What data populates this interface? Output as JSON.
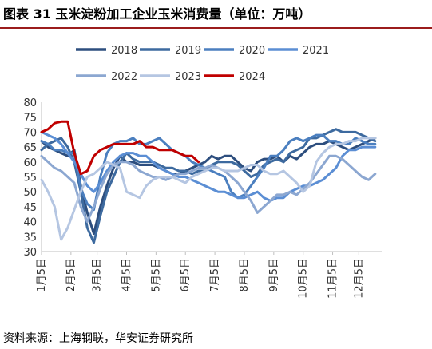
{
  "header": {
    "title": "图表 31 玉米淀粉加工企业玉米消费量（单位：万吨）"
  },
  "footer": {
    "source": "资料来源：上海钢联，华安证券研究所"
  },
  "chart_data": {
    "type": "line",
    "title": "图表 31 玉米淀粉加工企业玉米消费量（单位：万吨）",
    "ylim": [
      30,
      80
    ],
    "yticks": [
      30,
      35,
      40,
      45,
      50,
      55,
      60,
      65,
      70,
      75,
      80
    ],
    "xlim": [
      1,
      53
    ],
    "x_tick_labels": [
      {
        "label": "1月5日",
        "week": 1
      },
      {
        "label": "2月5日",
        "week": 5.5
      },
      {
        "label": "3月5日",
        "week": 9.5
      },
      {
        "label": "4月5日",
        "week": 14
      },
      {
        "label": "5月5日",
        "week": 18.5
      },
      {
        "label": "6月5日",
        "week": 23
      },
      {
        "label": "7月5日",
        "week": 27.5
      },
      {
        "label": "8月5日",
        "week": 32
      },
      {
        "label": "9月5日",
        "week": 36.5
      },
      {
        "label": "10月5日",
        "week": 41
      },
      {
        "label": "11月5日",
        "week": 45.5
      },
      {
        "label": "12月5日",
        "week": 49.5
      }
    ],
    "grid": false,
    "legend_position": "top",
    "series": [
      {
        "name": "2018",
        "color": "#2d4e7e",
        "values": [
          67,
          65,
          64,
          63,
          62,
          64,
          52,
          43,
          36,
          45,
          52,
          58,
          62,
          60,
          60,
          59,
          59,
          59,
          58,
          57,
          56,
          56,
          57,
          58,
          59,
          60,
          62,
          61,
          62,
          62,
          60,
          58,
          57,
          60,
          61,
          61,
          62,
          60,
          62,
          61,
          63,
          65,
          66,
          66,
          67,
          66,
          65,
          64,
          65,
          66,
          67,
          68
        ]
      },
      {
        "name": "2019",
        "color": "#3d6a9f",
        "values": [
          64,
          66,
          67,
          68,
          65,
          60,
          50,
          38,
          33,
          42,
          50,
          55,
          60,
          63,
          61,
          60,
          60,
          60,
          59,
          58,
          58,
          57,
          57,
          56,
          57,
          57,
          59,
          60,
          60,
          60,
          59,
          57,
          55,
          56,
          59,
          60,
          61,
          60,
          63,
          64,
          65,
          68,
          68,
          69,
          70,
          71,
          70,
          70,
          70,
          69,
          68,
          67
        ]
      },
      {
        "name": "2020",
        "color": "#4b7fbf",
        "values": [
          67,
          66,
          64,
          64,
          63,
          63,
          51,
          46,
          44,
          55,
          63,
          66,
          67,
          67,
          68,
          66,
          66,
          67,
          68,
          66,
          64,
          63,
          62,
          60,
          59,
          58,
          57,
          56,
          55,
          50,
          48,
          49,
          52,
          55,
          58,
          62,
          62,
          64,
          67,
          68,
          67,
          68,
          69,
          69,
          67,
          67,
          66,
          66,
          68,
          67,
          66,
          66
        ]
      },
      {
        "name": "2021",
        "color": "#5b8ed4",
        "values": [
          70,
          69,
          68,
          66,
          63,
          60,
          56,
          52,
          50,
          53,
          57,
          60,
          62,
          63,
          63,
          62,
          62,
          60,
          58,
          57,
          56,
          55,
          55,
          54,
          53,
          52,
          51,
          50,
          50,
          49,
          48,
          48,
          49,
          50,
          48,
          47,
          48,
          48,
          50,
          51,
          52,
          52,
          53,
          54,
          56,
          58,
          62,
          64,
          64,
          65,
          65,
          65
        ]
      },
      {
        "name": "2022",
        "color": "#8ca7d1",
        "values": [
          62,
          60,
          58,
          57,
          55,
          53,
          45,
          40,
          45,
          51,
          56,
          59,
          60,
          60,
          59,
          57,
          56,
          55,
          55,
          54,
          55,
          56,
          56,
          57,
          58,
          58,
          59,
          58,
          57,
          55,
          53,
          50,
          47,
          43,
          45,
          47,
          49,
          49,
          50,
          49,
          51,
          53,
          56,
          59,
          62,
          62,
          61,
          59,
          57,
          55,
          54,
          56
        ]
      },
      {
        "name": "2023",
        "color": "#b5c6e2",
        "values": [
          54,
          50,
          45,
          34,
          38,
          44,
          50,
          55,
          56,
          58,
          60,
          59,
          58,
          50,
          49,
          48,
          52,
          54,
          55,
          55,
          55,
          54,
          53,
          55,
          56,
          57,
          58,
          58,
          57,
          57,
          57,
          58,
          59,
          59,
          57,
          56,
          56,
          57,
          55,
          53,
          50,
          52,
          60,
          63,
          65,
          66,
          66,
          67,
          67,
          68,
          68,
          68
        ]
      },
      {
        "name": "2024",
        "color": "#c00000",
        "values": [
          70,
          71,
          73,
          73.5,
          73.5,
          63,
          56,
          57,
          62,
          64,
          65,
          66,
          66,
          66,
          66,
          67,
          65,
          65,
          64,
          64,
          64,
          63,
          62,
          62,
          60
        ]
      }
    ]
  }
}
